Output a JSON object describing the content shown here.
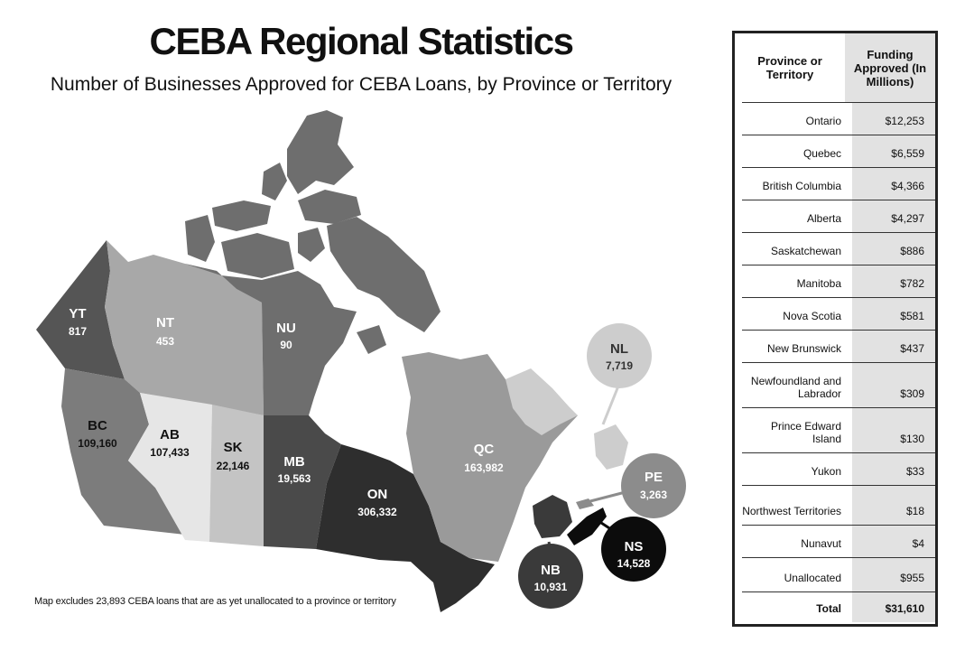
{
  "header": {
    "title": "CEBA Regional Statistics",
    "subtitle": "Number of Businesses Approved for CEBA Loans, by Province or Territory"
  },
  "map": {
    "regions": [
      {
        "code": "YT",
        "value": "817",
        "color": "#555555"
      },
      {
        "code": "NT",
        "value": "453",
        "color": "#a8a8a8"
      },
      {
        "code": "NU",
        "value": "90",
        "color": "#6e6e6e"
      },
      {
        "code": "BC",
        "value": "109,160",
        "color": "#7c7c7c"
      },
      {
        "code": "AB",
        "value": "107,433",
        "color": "#e6e6e6"
      },
      {
        "code": "SK",
        "value": "22,146",
        "color": "#c4c4c4"
      },
      {
        "code": "MB",
        "value": "19,563",
        "color": "#4a4a4a"
      },
      {
        "code": "ON",
        "value": "306,332",
        "color": "#2e2e2e"
      },
      {
        "code": "QC",
        "value": "163,982",
        "color": "#9a9a9a"
      },
      {
        "code": "NL",
        "value": "7,719",
        "color": "#cdcdcd"
      },
      {
        "code": "PE",
        "value": "3,263",
        "color": "#8c8c8c"
      },
      {
        "code": "NB",
        "value": "10,931",
        "color": "#3a3a3a"
      },
      {
        "code": "NS",
        "value": "14,528",
        "color": "#0c0c0c"
      }
    ],
    "note": "Map excludes 23,893 CEBA loans that are as yet unallocated to a province or territory"
  },
  "table": {
    "col1": "Province or Territory",
    "col2": "Funding Approved (In Millions)",
    "rows": [
      {
        "name": "Ontario",
        "value": "$12,253"
      },
      {
        "name": "Quebec",
        "value": "$6,559"
      },
      {
        "name": "British Columbia",
        "value": "$4,366"
      },
      {
        "name": "Alberta",
        "value": "$4,297"
      },
      {
        "name": "Saskatchewan",
        "value": "$886"
      },
      {
        "name": "Manitoba",
        "value": "$782"
      },
      {
        "name": "Nova Scotia",
        "value": "$581"
      },
      {
        "name": "New Brunswick",
        "value": "$437"
      },
      {
        "name": "Newfoundland and Labrador",
        "value": "$309"
      },
      {
        "name": "Prince Edward Island",
        "value": "$130"
      },
      {
        "name": "Yukon",
        "value": "$33"
      },
      {
        "name": "Northwest Territories",
        "value": "$18"
      },
      {
        "name": "Nunavut",
        "value": "$4"
      },
      {
        "name": "Unallocated",
        "value": "$955"
      }
    ],
    "total": {
      "name": "Total",
      "value": "$31,610"
    }
  }
}
